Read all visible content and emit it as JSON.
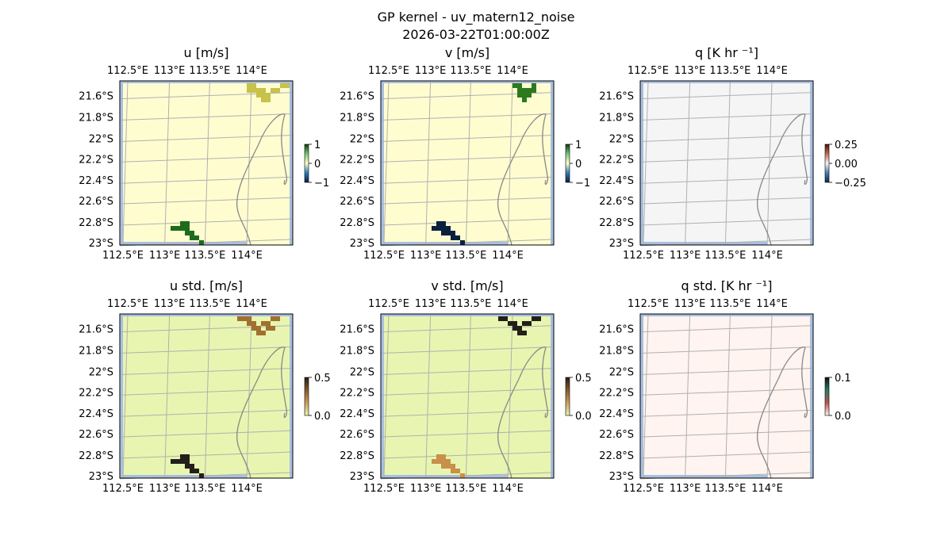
{
  "figure": {
    "title": "GP kernel - uv_matern12_noise",
    "timestamp": "2026-03-22T01:00:00Z"
  },
  "chart_data": [
    {
      "type": "heatmap",
      "title": "u [m/s]",
      "x_ticks": [
        "112.5°E",
        "113°E",
        "113.5°E",
        "114°E"
      ],
      "y_ticks": [
        "21.6°S",
        "21.8°S",
        "22°S",
        "22.2°S",
        "22.4°S",
        "22.6°S",
        "22.8°S",
        "23°S"
      ],
      "colorbar": {
        "ticks": [
          "1",
          "0",
          "−1"
        ],
        "range": [
          -1,
          1
        ],
        "colors": [
          "#0b1f3f",
          "#2c7fb8",
          "#ffffcc",
          "#78c679",
          "#0b3d0b"
        ]
      },
      "background": "#fffdd0",
      "patches": [
        {
          "color": "#c8c14a",
          "value": 0.4
        },
        {
          "color": "#1e6b1e",
          "value": 0.9
        }
      ]
    },
    {
      "type": "heatmap",
      "title": "v [m/s]",
      "x_ticks": [
        "112.5°E",
        "113°E",
        "113.5°E",
        "114°E"
      ],
      "y_ticks": [
        "21.6°S",
        "21.8°S",
        "22°S",
        "22.2°S",
        "22.4°S",
        "22.6°S",
        "22.8°S",
        "23°S"
      ],
      "colorbar": {
        "ticks": [
          "1",
          "0",
          "−1"
        ],
        "range": [
          -1,
          1
        ],
        "colors": [
          "#0b1f3f",
          "#2c7fb8",
          "#ffffcc",
          "#78c679",
          "#0b3d0b"
        ]
      },
      "background": "#fffdd0",
      "patches": [
        {
          "color": "#0b1f3f",
          "value": -1
        },
        {
          "color": "#2c7a1c",
          "value": 0.8
        }
      ]
    },
    {
      "type": "heatmap",
      "title": "q [K hr ⁻¹]",
      "x_ticks": [
        "112.5°E",
        "113°E",
        "113.5°E",
        "114°E"
      ],
      "y_ticks": [
        "21.6°S",
        "21.8°S",
        "22°S",
        "22.2°S",
        "22.4°S",
        "22.6°S",
        "22.8°S",
        "23°S"
      ],
      "colorbar": {
        "ticks": [
          "0.25",
          "0.00",
          "−0.25"
        ],
        "range": [
          -0.4,
          0.4
        ],
        "colors": [
          "#0b2a4a",
          "#4a7fb0",
          "#f5f5f5",
          "#c46a50",
          "#4a1010"
        ]
      },
      "background": "#f5f5f5",
      "patches": []
    },
    {
      "type": "heatmap",
      "title": "u std. [m/s]",
      "x_ticks": [
        "112.5°E",
        "113°E",
        "113.5°E",
        "114°E"
      ],
      "y_ticks": [
        "21.6°S",
        "21.8°S",
        "22°S",
        "22.2°S",
        "22.4°S",
        "22.6°S",
        "22.8°S",
        "23°S"
      ],
      "colorbar": {
        "ticks": [
          "0.5",
          "0.0"
        ],
        "range": [
          0,
          0.5
        ],
        "colors": [
          "#e8f5a9",
          "#c8a060",
          "#8b5a2b",
          "#231f1a"
        ]
      },
      "background": "#e8f5b0",
      "patches": [
        {
          "color": "#231f1a",
          "value": 0.5
        },
        {
          "color": "#a0702f",
          "value": 0.35
        }
      ]
    },
    {
      "type": "heatmap",
      "title": "v std. [m/s]",
      "x_ticks": [
        "112.5°E",
        "113°E",
        "113.5°E",
        "114°E"
      ],
      "y_ticks": [
        "21.6°S",
        "21.8°S",
        "22°S",
        "22.2°S",
        "22.4°S",
        "22.6°S",
        "22.8°S",
        "23°S"
      ],
      "colorbar": {
        "ticks": [
          "0.5",
          "0.0"
        ],
        "range": [
          0,
          0.5
        ],
        "colors": [
          "#e8f5a9",
          "#c8a060",
          "#8b5a2b",
          "#231f1a"
        ]
      },
      "background": "#e8f5b0",
      "patches": [
        {
          "color": "#c8904a",
          "value": 0.3
        },
        {
          "color": "#231f1a",
          "value": 0.5
        }
      ]
    },
    {
      "type": "heatmap",
      "title": "q std. [K hr ⁻¹]",
      "x_ticks": [
        "112.5°E",
        "113°E",
        "113.5°E",
        "114°E"
      ],
      "y_ticks": [
        "21.6°S",
        "21.8°S",
        "22°S",
        "22.2°S",
        "22.4°S",
        "22.6°S",
        "22.8°S",
        "23°S"
      ],
      "colorbar": {
        "ticks": [
          "0.1",
          "0.0"
        ],
        "range": [
          0,
          0.12
        ],
        "colors": [
          "#fff4ef",
          "#c0504d",
          "#208060",
          "#101010"
        ]
      },
      "background": "#fff4f0",
      "patches": []
    }
  ]
}
